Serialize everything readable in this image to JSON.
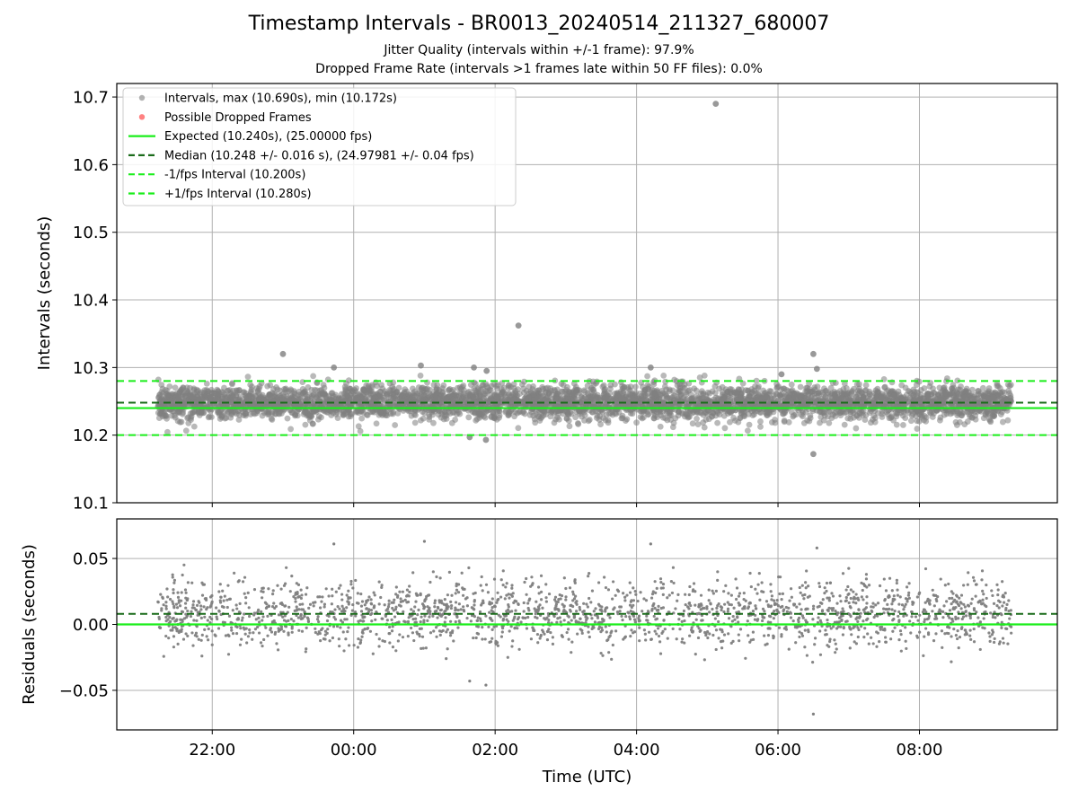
{
  "title": "Timestamp Intervals - BR0013_20240514_211327_680007",
  "subtitle_1": "Jitter Quality (intervals within +/-1 frame): 97.9%",
  "subtitle_2": "Dropped Frame Rate (intervals >1 frames late within 50 FF files): 0.0%",
  "colors": {
    "points": "#808080",
    "dropped": "#ff6b6b",
    "expected": "#1aee1a",
    "median": "#1a6b1a",
    "bounds": "#1aee1a",
    "grid": "#b0b0b0"
  },
  "chart_data": [
    {
      "type": "scatter",
      "panel": "intervals",
      "ylabel": "Intervals (seconds)",
      "xlabel": "",
      "ylim": [
        10.1,
        10.72
      ],
      "xlim_hours": [
        20.65,
        33.95
      ],
      "yticks": [
        10.1,
        10.2,
        10.3,
        10.4,
        10.5,
        10.6,
        10.7
      ],
      "ytick_labels": [
        "10.1",
        "10.2",
        "10.3",
        "10.4",
        "10.5",
        "10.6",
        "10.7"
      ],
      "xticks_hours": [
        22,
        24,
        26,
        28,
        30,
        32
      ],
      "grid": true,
      "legend_position": "top-left",
      "legend": [
        {
          "label": "Intervals, max (10.690s), min (10.172s)",
          "kind": "marker-gray"
        },
        {
          "label": "Possible Dropped Frames",
          "kind": "marker-red"
        },
        {
          "label": "Expected (10.240s), (25.00000 fps)",
          "kind": "solid-green"
        },
        {
          "label": "Median (10.248 +/- 0.016 s), (24.97981 +/- 0.04 fps)",
          "kind": "dash-darkgreen"
        },
        {
          "label": "-1/fps Interval (10.200s)",
          "kind": "dash-green"
        },
        {
          "label": "+1/fps Interval (10.280s)",
          "kind": "dash-green"
        }
      ],
      "reference_lines": [
        {
          "name": "Expected",
          "y": 10.24,
          "style": "solid"
        },
        {
          "name": "Median",
          "y": 10.248,
          "style": "dashed"
        },
        {
          "name": "-1/fps Interval",
          "y": 10.2,
          "style": "dashed"
        },
        {
          "name": "+1/fps Interval",
          "y": 10.28,
          "style": "dashed"
        }
      ],
      "series": [
        {
          "name": "Intervals, max (10.690s), min (10.172s)",
          "time_range_hours": [
            21.23,
            33.3
          ],
          "count": 4240,
          "center": 10.248,
          "spread": 0.016,
          "notable_points": [
            {
              "x": 29.12,
              "y": 10.69
            },
            {
              "x": 26.33,
              "y": 10.362
            },
            {
              "x": 23.0,
              "y": 10.32
            },
            {
              "x": 30.5,
              "y": 10.32
            },
            {
              "x": 24.95,
              "y": 10.303
            },
            {
              "x": 23.72,
              "y": 10.3
            },
            {
              "x": 25.7,
              "y": 10.3
            },
            {
              "x": 28.2,
              "y": 10.3
            },
            {
              "x": 30.55,
              "y": 10.298
            },
            {
              "x": 25.88,
              "y": 10.295
            },
            {
              "x": 30.05,
              "y": 10.29
            },
            {
              "x": 25.64,
              "y": 10.197
            },
            {
              "x": 25.87,
              "y": 10.193
            },
            {
              "x": 30.5,
              "y": 10.172
            }
          ]
        }
      ]
    },
    {
      "type": "scatter",
      "panel": "residuals",
      "ylabel": "Residuals (seconds)",
      "xlabel": "Time (UTC)",
      "ylim": [
        -0.08,
        0.08
      ],
      "xlim_hours": [
        20.65,
        33.95
      ],
      "yticks": [
        -0.05,
        0.0,
        0.05
      ],
      "ytick_labels": [
        "−0.05",
        "0.00",
        "0.05"
      ],
      "xticks_hours": [
        22,
        24,
        26,
        28,
        30,
        32
      ],
      "xtick_labels": [
        "22:00",
        "00:00",
        "02:00",
        "04:00",
        "06:00",
        "08:00"
      ],
      "grid": true,
      "reference_lines": [
        {
          "name": "Expected",
          "y": 0.0,
          "style": "solid"
        },
        {
          "name": "Median",
          "y": 0.008,
          "style": "dashed"
        }
      ],
      "series": [
        {
          "name": "Residuals",
          "time_range_hours": [
            21.23,
            33.3
          ],
          "count": 2120,
          "center": 0.008,
          "spread": 0.016,
          "notable_points": [
            {
              "x": 25.0,
              "y": 0.063
            },
            {
              "x": 23.72,
              "y": 0.061
            },
            {
              "x": 28.2,
              "y": 0.061
            },
            {
              "x": 30.55,
              "y": 0.058
            },
            {
              "x": 25.64,
              "y": -0.043
            },
            {
              "x": 25.87,
              "y": -0.046
            },
            {
              "x": 30.5,
              "y": -0.068
            }
          ]
        }
      ]
    }
  ]
}
